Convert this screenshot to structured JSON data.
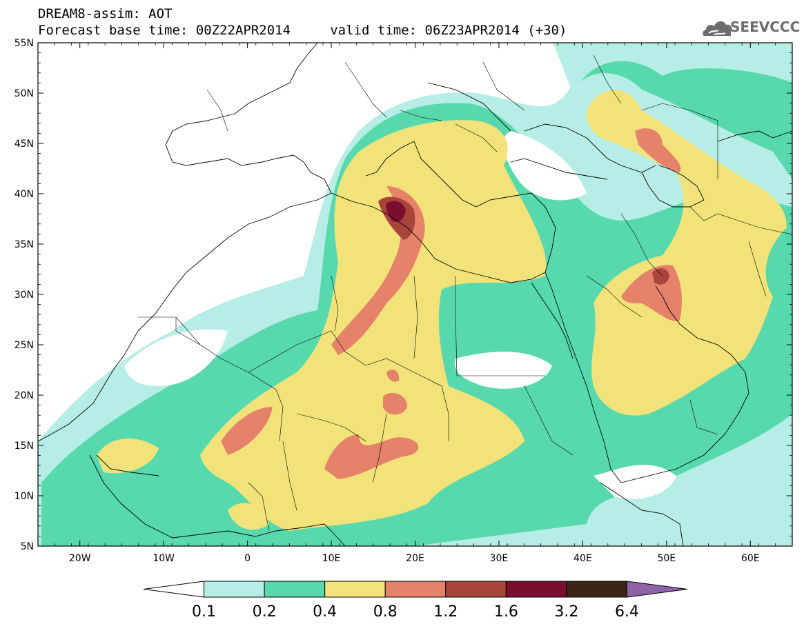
{
  "title": {
    "line1": "DREAM8-assim: AOT",
    "line2": "Forecast base time: 00Z22APR2014     valid time: 06Z23APR2014 (+30)"
  },
  "logo": {
    "text": "SEEVCCC",
    "icon": "cloud-icon"
  },
  "map": {
    "lon_range": [
      -25,
      65
    ],
    "lat_range": [
      5,
      55
    ],
    "lon_ticks": [
      {
        "value": -20,
        "label": "20W"
      },
      {
        "value": -10,
        "label": "10W"
      },
      {
        "value": 0,
        "label": "0"
      },
      {
        "value": 10,
        "label": "10E"
      },
      {
        "value": 20,
        "label": "20E"
      },
      {
        "value": 30,
        "label": "30E"
      },
      {
        "value": 40,
        "label": "40E"
      },
      {
        "value": 50,
        "label": "50E"
      },
      {
        "value": 60,
        "label": "60E"
      }
    ],
    "lat_ticks": [
      {
        "value": 5,
        "label": "5N"
      },
      {
        "value": 10,
        "label": "10N"
      },
      {
        "value": 15,
        "label": "15N"
      },
      {
        "value": 20,
        "label": "20N"
      },
      {
        "value": 25,
        "label": "25N"
      },
      {
        "value": 30,
        "label": "30N"
      },
      {
        "value": 35,
        "label": "35N"
      },
      {
        "value": 40,
        "label": "40N"
      },
      {
        "value": 45,
        "label": "45N"
      },
      {
        "value": 50,
        "label": "50N"
      },
      {
        "value": 55,
        "label": "55N"
      }
    ]
  },
  "colorbar": {
    "colors": [
      "#ffffff",
      "#b6ede6",
      "#58d9ad",
      "#f1e37a",
      "#e5826a",
      "#a9443d",
      "#7c0d2e",
      "#3a2413",
      "#8e63a8"
    ],
    "labels": [
      "0.1",
      "0.2",
      "0.4",
      "0.8",
      "1.2",
      "1.6",
      "3.2",
      "6.4"
    ]
  }
}
